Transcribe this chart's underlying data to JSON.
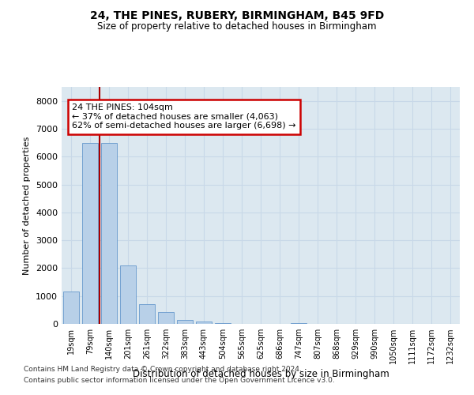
{
  "title1": "24, THE PINES, RUBERY, BIRMINGHAM, B45 9FD",
  "title2": "Size of property relative to detached houses in Birmingham",
  "xlabel": "Distribution of detached houses by size in Birmingham",
  "ylabel": "Number of detached properties",
  "categories": [
    "19sqm",
    "79sqm",
    "140sqm",
    "201sqm",
    "261sqm",
    "322sqm",
    "383sqm",
    "443sqm",
    "504sqm",
    "565sqm",
    "625sqm",
    "686sqm",
    "747sqm",
    "807sqm",
    "868sqm",
    "929sqm",
    "990sqm",
    "1050sqm",
    "1111sqm",
    "1172sqm",
    "1232sqm"
  ],
  "values": [
    1150,
    6500,
    6500,
    2100,
    700,
    420,
    150,
    80,
    30,
    10,
    0,
    0,
    30,
    0,
    0,
    0,
    0,
    0,
    0,
    0,
    0
  ],
  "bar_color": "#b8d0e8",
  "bar_edge_color": "#6699cc",
  "vline_color": "#aa0000",
  "vline_x": 1.5,
  "annotation_line1": "24 THE PINES: 104sqm",
  "annotation_line2": "← 37% of detached houses are smaller (4,063)",
  "annotation_line3": "62% of semi-detached houses are larger (6,698) →",
  "annotation_box_color": "#cc0000",
  "annotation_box_fill": "white",
  "ylim": [
    0,
    8500
  ],
  "yticks": [
    0,
    1000,
    2000,
    3000,
    4000,
    5000,
    6000,
    7000,
    8000
  ],
  "grid_color": "#c8d8e8",
  "bg_color": "#dce8f0",
  "footer1": "Contains HM Land Registry data © Crown copyright and database right 2024.",
  "footer2": "Contains public sector information licensed under the Open Government Licence v3.0."
}
